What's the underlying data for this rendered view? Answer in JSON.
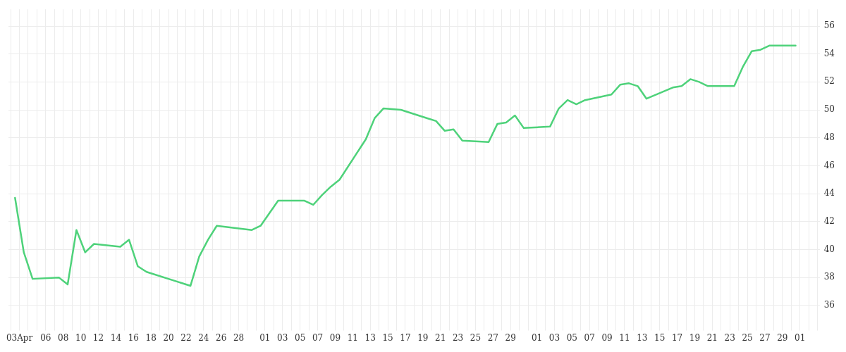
{
  "chart_data": {
    "type": "line",
    "x": [
      "--04-02T12:00",
      "--04-03T12:00",
      "--04-04T12:00",
      "--04-07T12:00",
      "--04-08T12:00",
      "--04-09T12:00",
      "--04-10T12:00",
      "--04-11T12:00",
      "--04-14T12:00",
      "--04-15T12:00",
      "--04-16T12:00",
      "--04-17T12:00",
      "--04-22T12:00",
      "--04-23T12:00",
      "--04-24T12:00",
      "--04-25T12:00",
      "--04-29T12:00",
      "--04-30T12:00",
      "--05-02T12:00",
      "--05-05T12:00",
      "--05-06T12:00",
      "--05-07T12:00",
      "--05-08T12:00",
      "--05-09T12:00",
      "--05-12T12:00",
      "--05-13T12:00",
      "--05-14T12:00",
      "--05-16T12:00",
      "--05-19T12:00",
      "--05-20T12:00",
      "--05-21T12:00",
      "--05-22T12:00",
      "--05-23T12:00",
      "--05-26T12:00",
      "--05-27T12:00",
      "--05-28T12:00",
      "--05-29T12:00",
      "--05-30T12:00",
      "--06-02T12:00",
      "--06-03T12:00",
      "--06-04T12:00",
      "--06-05T12:00",
      "--06-06T12:00",
      "--06-09T12:00",
      "--06-10T12:00",
      "--06-11T12:00",
      "--06-12T12:00",
      "--06-13T12:00",
      "--06-16T12:00",
      "--06-17T12:00",
      "--06-18T12:00",
      "--06-19T12:00",
      "--06-20T12:00",
      "--06-23T12:00",
      "--06-24T12:00",
      "--06-25T12:00",
      "--06-26T12:00",
      "--06-27T12:00",
      "--06-30T12:00"
    ],
    "series": [
      {
        "color": "#4ed27a",
        "values": [
          43.7,
          39.8,
          37.9,
          38.0,
          37.5,
          41.4,
          39.8,
          40.4,
          40.2,
          40.7,
          38.8,
          38.4,
          37.4,
          39.5,
          40.7,
          41.7,
          41.4,
          41.7,
          43.5,
          43.5,
          43.2,
          43.9,
          44.5,
          45.0,
          47.9,
          49.4,
          50.1,
          50.0,
          49.4,
          49.2,
          48.5,
          48.6,
          47.8,
          47.7,
          49.0,
          49.1,
          49.6,
          48.7,
          48.8,
          50.1,
          50.7,
          50.4,
          50.7,
          51.1,
          51.8,
          51.9,
          51.7,
          50.8,
          51.6,
          51.7,
          52.2,
          52.0,
          51.7,
          51.7,
          53.1,
          54.2,
          54.3,
          54.6,
          54.6
        ]
      }
    ],
    "xlim": [
      "--04-01T18:00",
      "--07-03T06:00"
    ],
    "xticks": [
      {
        "value": "--04-02",
        "label": null
      },
      {
        "value": "--04-03",
        "label": "03Apr"
      },
      {
        "value": "--04-04",
        "label": null
      },
      {
        "value": "--04-05",
        "label": null
      },
      {
        "value": "--04-06",
        "label": "06"
      },
      {
        "value": "--04-07",
        "label": null
      },
      {
        "value": "--04-08",
        "label": "08"
      },
      {
        "value": "--04-09",
        "label": null
      },
      {
        "value": "--04-10",
        "label": "10"
      },
      {
        "value": "--04-11",
        "label": null
      },
      {
        "value": "--04-12",
        "label": "12"
      },
      {
        "value": "--04-13",
        "label": null
      },
      {
        "value": "--04-14",
        "label": "14"
      },
      {
        "value": "--04-15",
        "label": null
      },
      {
        "value": "--04-16",
        "label": "16"
      },
      {
        "value": "--04-17",
        "label": null
      },
      {
        "value": "--04-18",
        "label": "18"
      },
      {
        "value": "--04-19",
        "label": null
      },
      {
        "value": "--04-20",
        "label": "20"
      },
      {
        "value": "--04-21",
        "label": null
      },
      {
        "value": "--04-22",
        "label": "22"
      },
      {
        "value": "--04-23",
        "label": null
      },
      {
        "value": "--04-24",
        "label": "24"
      },
      {
        "value": "--04-25",
        "label": null
      },
      {
        "value": "--04-26",
        "label": "26"
      },
      {
        "value": "--04-27",
        "label": null
      },
      {
        "value": "--04-28",
        "label": "28"
      },
      {
        "value": "--04-29",
        "label": null
      },
      {
        "value": "--04-30",
        "label": null
      },
      {
        "value": "--05-01",
        "label": "01"
      },
      {
        "value": "--05-02",
        "label": null
      },
      {
        "value": "--05-03",
        "label": "03"
      },
      {
        "value": "--05-04",
        "label": null
      },
      {
        "value": "--05-05",
        "label": "05"
      },
      {
        "value": "--05-06",
        "label": null
      },
      {
        "value": "--05-07",
        "label": "07"
      },
      {
        "value": "--05-08",
        "label": null
      },
      {
        "value": "--05-09",
        "label": "09"
      },
      {
        "value": "--05-10",
        "label": null
      },
      {
        "value": "--05-11",
        "label": "11"
      },
      {
        "value": "--05-12",
        "label": null
      },
      {
        "value": "--05-13",
        "label": "13"
      },
      {
        "value": "--05-14",
        "label": null
      },
      {
        "value": "--05-15",
        "label": "15"
      },
      {
        "value": "--05-16",
        "label": null
      },
      {
        "value": "--05-17",
        "label": "17"
      },
      {
        "value": "--05-18",
        "label": null
      },
      {
        "value": "--05-19",
        "label": "19"
      },
      {
        "value": "--05-20",
        "label": null
      },
      {
        "value": "--05-21",
        "label": "21"
      },
      {
        "value": "--05-22",
        "label": null
      },
      {
        "value": "--05-23",
        "label": "23"
      },
      {
        "value": "--05-24",
        "label": null
      },
      {
        "value": "--05-25",
        "label": "25"
      },
      {
        "value": "--05-26",
        "label": null
      },
      {
        "value": "--05-27",
        "label": "27"
      },
      {
        "value": "--05-28",
        "label": null
      },
      {
        "value": "--05-29",
        "label": "29"
      },
      {
        "value": "--05-30",
        "label": null
      },
      {
        "value": "--05-31",
        "label": null
      },
      {
        "value": "--06-01",
        "label": "01"
      },
      {
        "value": "--06-02",
        "label": null
      },
      {
        "value": "--06-03",
        "label": "03"
      },
      {
        "value": "--06-04",
        "label": null
      },
      {
        "value": "--06-05",
        "label": "05"
      },
      {
        "value": "--06-06",
        "label": null
      },
      {
        "value": "--06-07",
        "label": "07"
      },
      {
        "value": "--06-08",
        "label": null
      },
      {
        "value": "--06-09",
        "label": "09"
      },
      {
        "value": "--06-10",
        "label": null
      },
      {
        "value": "--06-11",
        "label": "11"
      },
      {
        "value": "--06-12",
        "label": null
      },
      {
        "value": "--06-13",
        "label": "13"
      },
      {
        "value": "--06-14",
        "label": null
      },
      {
        "value": "--06-15",
        "label": "15"
      },
      {
        "value": "--06-16",
        "label": null
      },
      {
        "value": "--06-17",
        "label": "17"
      },
      {
        "value": "--06-18",
        "label": null
      },
      {
        "value": "--06-19",
        "label": "19"
      },
      {
        "value": "--06-20",
        "label": null
      },
      {
        "value": "--06-21",
        "label": "21"
      },
      {
        "value": "--06-22",
        "label": null
      },
      {
        "value": "--06-23",
        "label": "23"
      },
      {
        "value": "--06-24",
        "label": null
      },
      {
        "value": "--06-25",
        "label": "25"
      },
      {
        "value": "--06-26",
        "label": null
      },
      {
        "value": "--06-27",
        "label": "27"
      },
      {
        "value": "--06-28",
        "label": null
      },
      {
        "value": "--06-29",
        "label": "29"
      },
      {
        "value": "--06-30",
        "label": null
      },
      {
        "value": "--07-01",
        "label": "01"
      },
      {
        "value": "--07-02",
        "label": null
      },
      {
        "value": "--07-03",
        "label": null
      }
    ],
    "ylim": [
      34.6,
      57.2
    ],
    "yticks": [
      36,
      38,
      40,
      42,
      44,
      46,
      48,
      50,
      52,
      54,
      56
    ],
    "grid": true,
    "legend": false,
    "marker": "none",
    "line_style": "solid"
  }
}
